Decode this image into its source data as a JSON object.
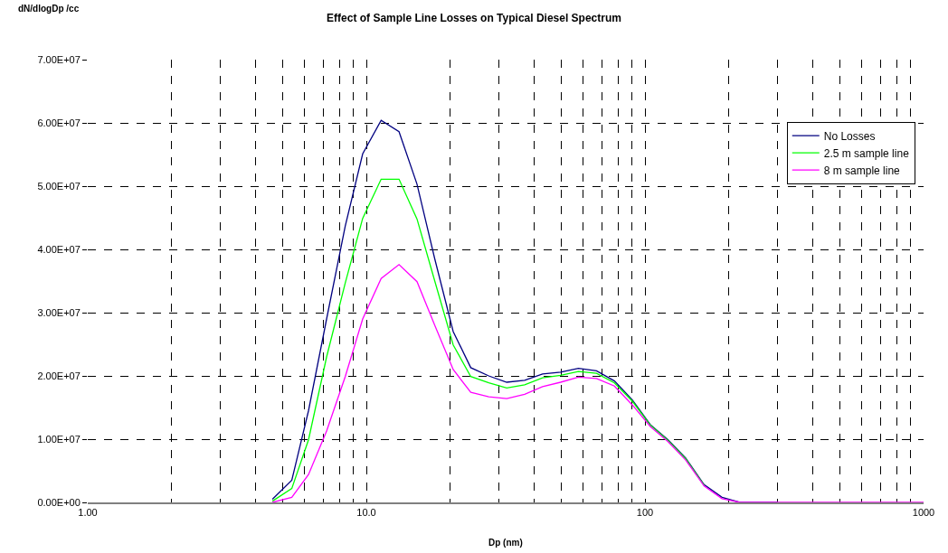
{
  "chart_data": {
    "type": "line",
    "title": "Effect of Sample Line Losses on Typical Diesel Spectrum",
    "ylabel": "dN/dlogDp /cc",
    "xlabel": "Dp (nm)",
    "x": [
      4.6,
      5.4,
      6.2,
      7.2,
      8.4,
      9.7,
      11.3,
      13.1,
      15.2,
      17.6,
      20.5,
      23.7,
      27.5,
      31.9,
      37.0,
      42.9,
      49.8,
      57.7,
      67.0,
      77.7,
      90.1,
      104.5,
      121,
      140,
      163,
      189,
      219,
      300,
      500,
      1000
    ],
    "series": [
      {
        "name": "No Losses",
        "color": "#000080",
        "values": [
          500000.0,
          3500000.0,
          14500000.0,
          29000000.0,
          43700000.0,
          55100000.0,
          60400000.0,
          58600000.0,
          50300000.0,
          38500000.0,
          27000000.0,
          21300000.0,
          20000000.0,
          19000000.0,
          19300000.0,
          20300000.0,
          20600000.0,
          21200000.0,
          20800000.0,
          19200000.0,
          16200000.0,
          12300000.0,
          9900000.0,
          7000000.0,
          2800000.0,
          800000.0,
          0,
          0,
          null,
          null
        ]
      },
      {
        "name": "2.5 m sample line",
        "color": "#00ff00",
        "values": [
          200000.0,
          2200000.0,
          9900000.0,
          23000000.0,
          34700000.0,
          44900000.0,
          51100000.0,
          51100000.0,
          44800000.0,
          35000000.0,
          24900000.0,
          19900000.0,
          18900000.0,
          18100000.0,
          18600000.0,
          19700000.0,
          20100000.0,
          20700000.0,
          20400000.0,
          18900000.0,
          16000000.0,
          12200000.0,
          9800000.0,
          6900000.0,
          2700000.0,
          null,
          null,
          null,
          null,
          null
        ]
      },
      {
        "name": "8 m sample line",
        "color": "#ff00ff",
        "values": [
          0,
          800000.0,
          4400000.0,
          11300000.0,
          19900000.0,
          29000000.0,
          35400000.0,
          37600000.0,
          34900000.0,
          28000000.0,
          21000000.0,
          17400000.0,
          16700000.0,
          16400000.0,
          17100000.0,
          18300000.0,
          19000000.0,
          19800000.0,
          19600000.0,
          18400000.0,
          15400000.0,
          12000000.0,
          9600000.0,
          6700000.0,
          2600000.0,
          600000.0,
          0,
          0,
          0,
          0
        ]
      }
    ],
    "log": "x",
    "xlim": [
      1,
      1000
    ],
    "xticks": [
      {
        "value": 1,
        "label": "1.00"
      },
      {
        "value": 2,
        "label": null
      },
      {
        "value": 3,
        "label": null
      },
      {
        "value": 4,
        "label": null
      },
      {
        "value": 5,
        "label": null
      },
      {
        "value": 6,
        "label": null
      },
      {
        "value": 7,
        "label": null
      },
      {
        "value": 8,
        "label": null
      },
      {
        "value": 9,
        "label": null
      },
      {
        "value": 10,
        "label": "10.0"
      },
      {
        "value": 20,
        "label": null
      },
      {
        "value": 30,
        "label": null
      },
      {
        "value": 40,
        "label": null
      },
      {
        "value": 50,
        "label": null
      },
      {
        "value": 60,
        "label": null
      },
      {
        "value": 70,
        "label": null
      },
      {
        "value": 80,
        "label": null
      },
      {
        "value": 90,
        "label": null
      },
      100,
      {
        "value": 200,
        "label": null
      },
      {
        "value": 300,
        "label": null
      },
      {
        "value": 400,
        "label": null
      },
      {
        "value": 500,
        "label": null
      },
      {
        "value": 600,
        "label": null
      },
      {
        "value": 700,
        "label": null
      },
      {
        "value": 800,
        "label": null
      },
      {
        "value": 900,
        "label": null
      },
      1000
    ],
    "ylim": [
      0,
      70000000
    ],
    "yticks": [
      {
        "value": 0,
        "label": "0.00E+00"
      },
      {
        "value": 10000000,
        "label": "1.00E+07"
      },
      {
        "value": 20000000,
        "label": "2.00E+07"
      },
      {
        "value": 30000000,
        "label": "3.00E+07"
      },
      {
        "value": 40000000,
        "label": "4.00E+07"
      },
      {
        "value": 50000000,
        "label": "5.00E+07"
      },
      {
        "value": 60000000,
        "label": "6.00E+07"
      },
      {
        "value": 70000000,
        "label": "7.00E+07"
      }
    ],
    "grid": true,
    "line_style": "solid",
    "marker": "none",
    "legend": "top right"
  }
}
